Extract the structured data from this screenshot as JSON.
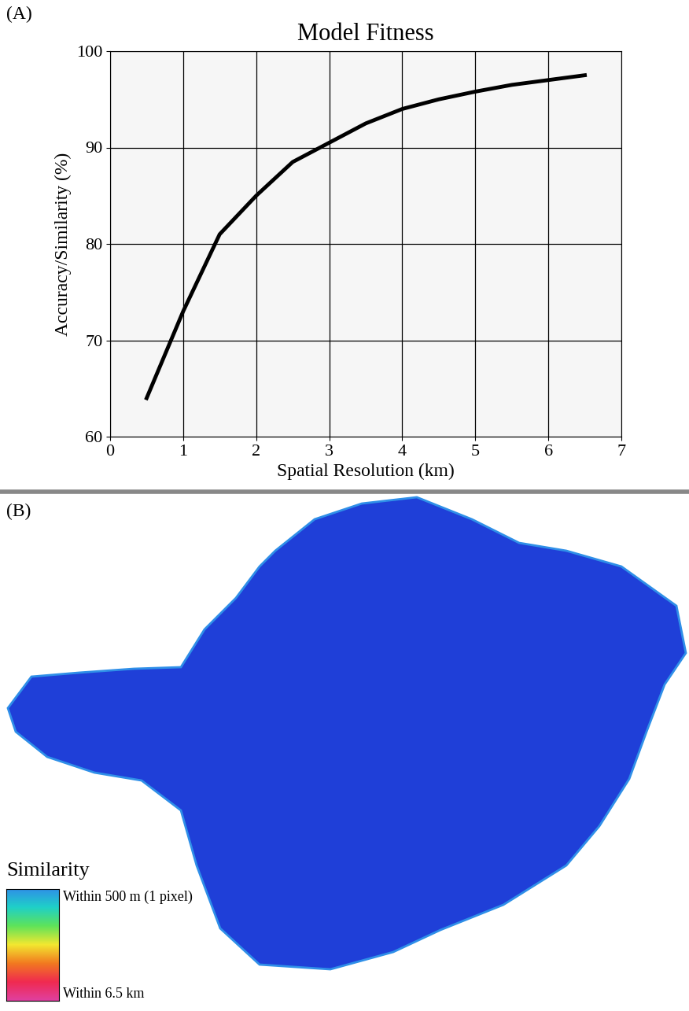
{
  "chart_data": [
    {
      "type": "line",
      "panel": "(A)",
      "title": "Model Fitness",
      "x_label": "Spatial Resolution (km)",
      "y_label": "Accuracy/Similarity (%)",
      "x": [
        0.5,
        1,
        1.5,
        2,
        2.5,
        3,
        3.5,
        4,
        4.5,
        5,
        5.5,
        6,
        6.5
      ],
      "values": [
        64,
        73,
        81,
        85,
        88.5,
        90.5,
        92.5,
        94,
        95,
        95.8,
        96.5,
        97,
        97.5
      ],
      "color": "#000000",
      "xlim": [
        0,
        7
      ],
      "ylim": [
        60,
        100
      ],
      "xticks": [
        0,
        1,
        2,
        3,
        4,
        5,
        6,
        7
      ],
      "yticks": [
        60,
        70,
        80,
        90,
        100
      ],
      "grid": true
    },
    {
      "type": "map",
      "panel": "(B)",
      "color": "#1f3fd8",
      "legend_title": "Similarity",
      "legend_labels": [
        "Within 500 m (1 pixel)",
        "Within 6.5 km"
      ],
      "colors": [
        "#2f8fe8",
        "#1fd0c8",
        "#5ee35a",
        "#f2e830",
        "#f27a20",
        "#f02a50",
        "#e040a0"
      ]
    }
  ]
}
